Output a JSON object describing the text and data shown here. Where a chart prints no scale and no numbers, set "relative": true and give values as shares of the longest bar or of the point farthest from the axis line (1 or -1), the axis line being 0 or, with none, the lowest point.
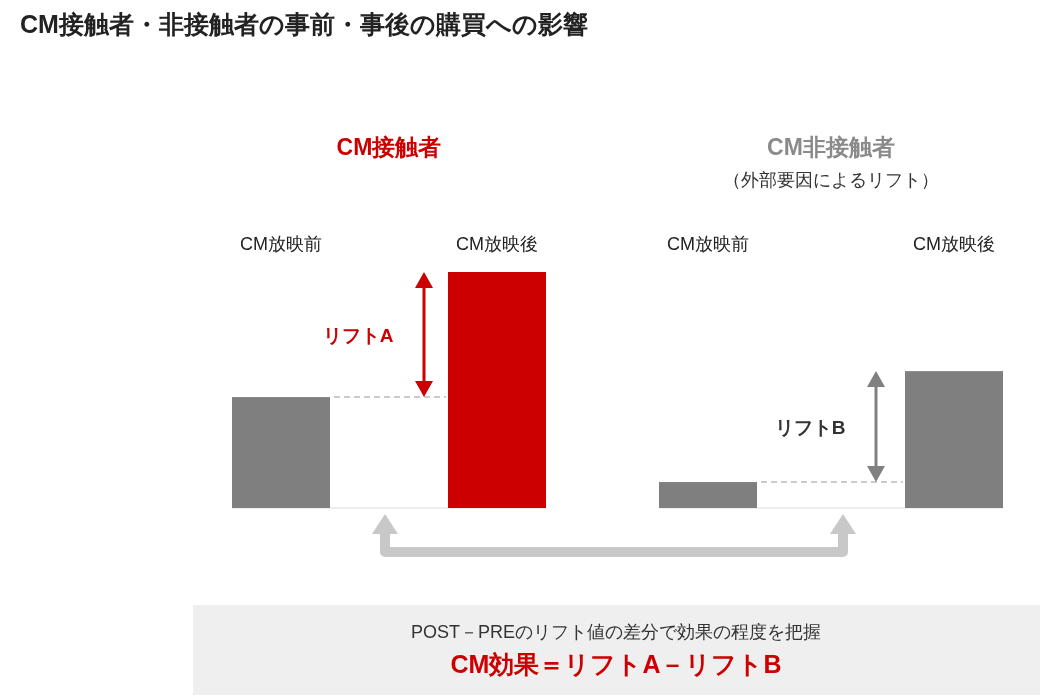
{
  "chart_data": {
    "type": "bar",
    "title": "CM接触者・非接触者の事前・事後の購買への影響",
    "categories": [
      "CM放映前",
      "CM放映後",
      "CM放映前",
      "CM放映後"
    ],
    "values": [
      0.47,
      1,
      0.11,
      0.58
    ],
    "colors": [
      "#7f7f7f",
      "#cc0000",
      "#7f7f7f",
      "#7f7f7f"
    ],
    "relative": true,
    "annotations": [
      "CM接触者",
      "CM非接触者",
      "（外部要因によるリフト）",
      "リフトA",
      "リフトB",
      "POST－PREのリフト値の差分で効果の程度を把握",
      "CM効果＝リフトA－リフトB"
    ]
  }
}
